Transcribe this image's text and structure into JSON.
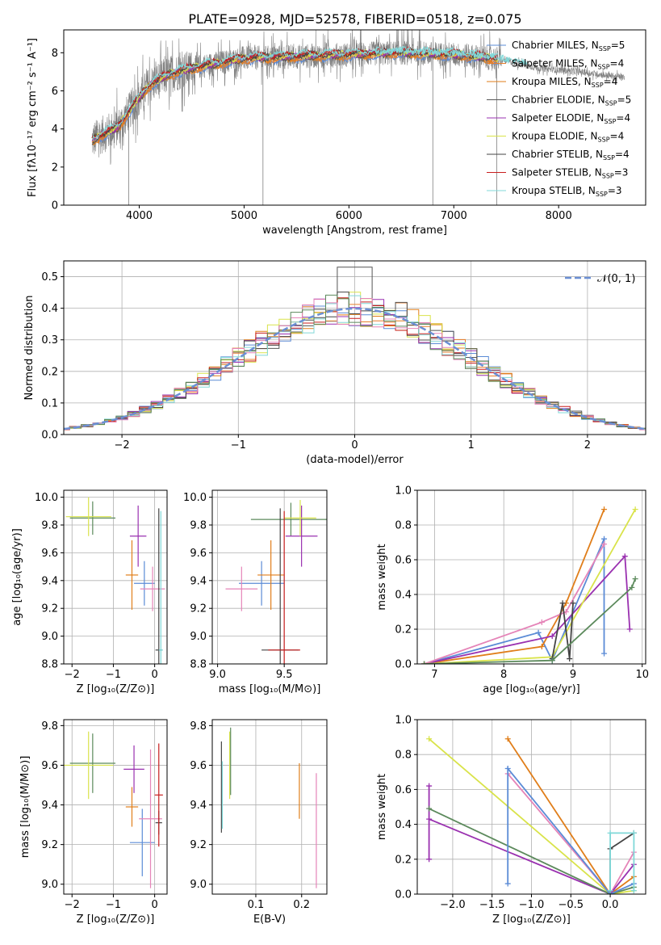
{
  "title": "PLATE=0928, MJD=52578, FIBERID=0518, z=0.075",
  "colors": {
    "chabrier_miles": "#5b8bd6",
    "salpeter_miles": "#e87f2c",
    "kroupa_miles": "#e07e1a",
    "chabrier_elodie": "#555555",
    "salpeter_elodie": "#9a31b0",
    "kroupa_elodie": "#d9e34a",
    "chabrier_stelib": "#444444",
    "salpeter_stelib": "#c81e1e",
    "kroupa_stelib": "#80d8d8",
    "spectrum_gray": "#808080",
    "pink": "#e584b8",
    "green": "#5c8a5c",
    "normal_curve": "#6b8fd4"
  },
  "chart_data": [
    {
      "id": "spectrum",
      "type": "line",
      "xlabel": "wavelength [Angstrom, rest frame]",
      "ylabel": "Flux [fλ10⁻¹⁷ erg cm⁻² s⁻¹ A⁻¹]",
      "xlim": [
        3280,
        8830
      ],
      "ylim": [
        0,
        9.2
      ],
      "xticks": [
        4000,
        5000,
        6000,
        7000,
        8000
      ],
      "yticks": [
        0,
        2,
        4,
        6,
        8
      ],
      "legend_position": "right",
      "legend": [
        {
          "label": "Chabrier MILES, N",
          "sub": "SSP",
          "suffix": "=5",
          "color": "#5b8bd6"
        },
        {
          "label": "Salpeter MILES, N",
          "sub": "SSP",
          "suffix": "=4",
          "color": "#e87f2c"
        },
        {
          "label": "Kroupa MILES, N",
          "sub": "SSP",
          "suffix": "=4",
          "color": "#e07e1a"
        },
        {
          "label": "Chabrier ELODIE, N",
          "sub": "SSP",
          "suffix": "=5",
          "color": "#555555"
        },
        {
          "label": "Salpeter ELODIE, N",
          "sub": "SSP",
          "suffix": "=4",
          "color": "#9a31b0"
        },
        {
          "label": "Kroupa ELODIE, N",
          "sub": "SSP",
          "suffix": "=4",
          "color": "#d9e34a"
        },
        {
          "label": "Chabrier STELIB, N",
          "sub": "SSP",
          "suffix": "=4",
          "color": "#444444"
        },
        {
          "label": "Salpeter STELIB, N",
          "sub": "SSP",
          "suffix": "=3",
          "color": "#c81e1e"
        },
        {
          "label": "Kroupa STELIB, N",
          "sub": "SSP",
          "suffix": "=3",
          "color": "#80d8d8"
        }
      ],
      "continuum": [
        [
          3550,
          3.4
        ],
        [
          3650,
          3.7
        ],
        [
          3800,
          4.1
        ],
        [
          3950,
          5.3
        ],
        [
          4100,
          6.3
        ],
        [
          4300,
          6.9
        ],
        [
          4600,
          7.3
        ],
        [
          5000,
          7.7
        ],
        [
          5500,
          7.8
        ],
        [
          6000,
          7.9
        ],
        [
          6500,
          8.0
        ],
        [
          7000,
          7.9
        ],
        [
          7400,
          7.7
        ],
        [
          7800,
          7.2
        ],
        [
          8200,
          7.0
        ],
        [
          8630,
          6.7
        ]
      ],
      "model_end": 7420,
      "noise_spikes": [
        [
          3900,
          0
        ],
        [
          5180,
          0
        ],
        [
          6800,
          0
        ],
        [
          7410,
          0
        ]
      ]
    },
    {
      "id": "residuals",
      "type": "histogram",
      "xlabel": "(data-model)/error",
      "ylabel": "Normed distribution",
      "xlim": [
        -2.5,
        2.5
      ],
      "ylim": [
        0,
        0.55
      ],
      "xticks": [
        -2,
        -1,
        0,
        1,
        2
      ],
      "yticks": [
        0.0,
        0.1,
        0.2,
        0.3,
        0.4,
        0.5
      ],
      "bin_width": 0.1,
      "legend": "𝒩(0, 1)",
      "normal_curve": {
        "mu": 0,
        "sigma": 1
      }
    },
    {
      "id": "age_vs_Z",
      "type": "scatter",
      "xlabel": "Z [log₁₀(Z/Z⊙)]",
      "ylabel": "age  [log₁₀(age/yr)]",
      "xlim": [
        -2.2,
        0.3
      ],
      "ylim": [
        8.8,
        10.05
      ],
      "xticks": [
        -2,
        -1,
        0
      ],
      "yticks": [
        8.8,
        9.0,
        9.2,
        9.4,
        9.6,
        9.8,
        10.0
      ],
      "points": [
        {
          "x": -0.25,
          "y": 9.38,
          "xerr": 0.25,
          "yerr": 0.16,
          "color": "#5b8bd6"
        },
        {
          "x": -0.55,
          "y": 9.44,
          "xerr": 0.15,
          "yerr": 0.25,
          "color": "#e07e1a"
        },
        {
          "x": -1.5,
          "y": 9.85,
          "xerr": 0.55,
          "yerr": 0.12,
          "color": "#5c8a5c"
        },
        {
          "x": -0.4,
          "y": 9.72,
          "xerr": 0.2,
          "yerr": 0.22,
          "color": "#9a31b0"
        },
        {
          "x": -1.6,
          "y": 9.86,
          "xerr": 0.55,
          "yerr": 0.14,
          "color": "#d9e34a"
        },
        {
          "x": -0.05,
          "y": 9.34,
          "xerr": 0.3,
          "yerr": 0.16,
          "color": "#e584b8"
        },
        {
          "x": 0.1,
          "y": 8.9,
          "xerr": 0.08,
          "yerr": 1.02,
          "color": "#444444"
        },
        {
          "x": 0.15,
          "y": 8.9,
          "xerr": 0.05,
          "yerr": 1.0,
          "color": "#80d8d8"
        }
      ]
    },
    {
      "id": "age_vs_mass",
      "type": "scatter",
      "xlabel": "mass [log₁₀(M/M⊙)]",
      "xlim": [
        8.96,
        9.82
      ],
      "ylim": [
        8.8,
        10.05
      ],
      "xticks": [
        9.0,
        9.5
      ],
      "yticks": [
        8.8,
        9.0,
        9.2,
        9.4,
        9.6,
        9.8,
        10.0
      ],
      "points": [
        {
          "x": 9.33,
          "y": 9.38,
          "xerr": 0.17,
          "yerr": 0.16,
          "color": "#5b8bd6"
        },
        {
          "x": 9.4,
          "y": 9.44,
          "xerr": 0.1,
          "yerr": 0.25,
          "color": "#e07e1a"
        },
        {
          "x": 9.55,
          "y": 9.84,
          "xerr": 0.3,
          "yerr": 0.12,
          "color": "#5c8a5c"
        },
        {
          "x": 9.63,
          "y": 9.72,
          "xerr": 0.12,
          "yerr": 0.22,
          "color": "#9a31b0"
        },
        {
          "x": 9.62,
          "y": 9.85,
          "xerr": 0.12,
          "yerr": 0.13,
          "color": "#d9e34a"
        },
        {
          "x": 9.18,
          "y": 9.34,
          "xerr": 0.12,
          "yerr": 0.16,
          "color": "#e584b8"
        },
        {
          "x": 9.47,
          "y": 8.9,
          "xerr": 0.14,
          "yerr": 1.02,
          "color": "#444444"
        },
        {
          "x": 9.5,
          "y": 8.9,
          "xerr": 0.12,
          "yerr": 1.0,
          "color": "#c81e1e"
        }
      ]
    },
    {
      "id": "weight_vs_age",
      "type": "line",
      "xlabel": "age  [log₁₀(age/yr)]",
      "ylabel": "mass weight",
      "xlim": [
        6.75,
        10.05
      ],
      "ylim": [
        0,
        1.0
      ],
      "xticks": [
        7,
        8,
        9,
        10
      ],
      "yticks": [
        0.0,
        0.2,
        0.4,
        0.6,
        0.8,
        1.0
      ],
      "series": [
        {
          "color": "#5b8bd6",
          "x": [
            6.85,
            8.5,
            8.7,
            9.45,
            9.45
          ],
          "y": [
            0.0,
            0.18,
            0.02,
            0.72,
            0.06
          ]
        },
        {
          "color": "#e07e1a",
          "x": [
            6.85,
            8.55,
            8.9,
            9.45
          ],
          "y": [
            0.0,
            0.1,
            0.35,
            0.89
          ]
        },
        {
          "color": "#9a31b0",
          "x": [
            6.85,
            8.7,
            9.75,
            9.82
          ],
          "y": [
            0.0,
            0.16,
            0.62,
            0.2
          ]
        },
        {
          "color": "#e584b8",
          "x": [
            6.85,
            8.55,
            8.9,
            9.45
          ],
          "y": [
            0.0,
            0.24,
            0.3,
            0.69
          ]
        },
        {
          "color": "#d9e34a",
          "x": [
            6.85,
            8.7,
            9.9
          ],
          "y": [
            0.0,
            0.04,
            0.89
          ]
        },
        {
          "color": "#444444",
          "x": [
            8.7,
            8.85,
            8.95,
            9.0
          ],
          "y": [
            0.03,
            0.35,
            0.03,
            0.35
          ]
        },
        {
          "color": "#5c8a5c",
          "x": [
            6.85,
            8.7,
            9.85,
            9.9
          ],
          "y": [
            0.0,
            0.02,
            0.44,
            0.49
          ]
        }
      ]
    },
    {
      "id": "mass_vs_Z",
      "type": "scatter",
      "xlabel": "Z [log₁₀(Z/Z⊙)]",
      "ylabel": "mass [log₁₀(M/M⊙)]",
      "xlim": [
        -2.2,
        0.3
      ],
      "ylim": [
        8.95,
        9.83
      ],
      "xticks": [
        -2,
        -1,
        0
      ],
      "yticks": [
        9.0,
        9.2,
        9.4,
        9.6,
        9.8
      ],
      "points": [
        {
          "x": -0.3,
          "y": 9.21,
          "xerr": 0.3,
          "yerr": 0.17,
          "color": "#5b8bd6"
        },
        {
          "x": -0.55,
          "y": 9.39,
          "xerr": 0.15,
          "yerr": 0.1,
          "color": "#e07e1a"
        },
        {
          "x": -1.5,
          "y": 9.61,
          "xerr": 0.55,
          "yerr": 0.15,
          "color": "#5c8a5c"
        },
        {
          "x": -0.5,
          "y": 9.58,
          "xerr": 0.25,
          "yerr": 0.12,
          "color": "#9a31b0"
        },
        {
          "x": -1.6,
          "y": 9.6,
          "xerr": 0.6,
          "yerr": 0.17,
          "color": "#d9e34a"
        },
        {
          "x": -0.1,
          "y": 9.33,
          "xerr": 0.28,
          "yerr": 0.35,
          "color": "#e584b8"
        },
        {
          "x": 0.1,
          "y": 9.31,
          "xerr": 0.08,
          "yerr": 0.06,
          "color": "#444444"
        },
        {
          "x": 0.1,
          "y": 9.45,
          "xerr": 0.1,
          "yerr": 0.26,
          "color": "#c81e1e"
        }
      ]
    },
    {
      "id": "mass_vs_ebv",
      "type": "scatter",
      "xlabel": "E(B-V)",
      "xlim": [
        0.005,
        0.255
      ],
      "ylim": [
        8.95,
        9.83
      ],
      "xticks": [
        0.1,
        0.2
      ],
      "yticks": [
        9.0,
        9.2,
        9.4,
        9.6,
        9.8
      ],
      "points": [
        {
          "x": 0.025,
          "y": 9.49,
          "xerr": 0,
          "yerr": 0.23,
          "color": "#444444"
        },
        {
          "x": 0.027,
          "y": 9.45,
          "xerr": 0,
          "yerr": 0.17,
          "color": "#80d8d8"
        },
        {
          "x": 0.043,
          "y": 9.6,
          "xerr": 0,
          "yerr": 0.17,
          "color": "#d9e34a"
        },
        {
          "x": 0.045,
          "y": 9.62,
          "xerr": 0,
          "yerr": 0.17,
          "color": "#5c8a5c"
        },
        {
          "x": 0.195,
          "y": 9.47,
          "xerr": 0,
          "yerr": 0.14,
          "color": "#e07e1a"
        },
        {
          "x": 0.232,
          "y": 9.27,
          "xerr": 0,
          "yerr": 0.29,
          "color": "#e584b8"
        }
      ]
    },
    {
      "id": "weight_vs_Z",
      "type": "line",
      "xlabel": "Z [log₁₀(Z/Z⊙)]",
      "ylabel": "mass weight",
      "xlim": [
        -2.45,
        0.45
      ],
      "ylim": [
        0,
        1.0
      ],
      "xticks": [
        -2.0,
        -1.5,
        -1.0,
        -0.5,
        0.0
      ],
      "yticks": [
        0.0,
        0.2,
        0.4,
        0.6,
        0.8,
        1.0
      ],
      "series": [
        {
          "color": "#d9e34a",
          "x": [
            -2.3,
            0.0,
            0.3
          ],
          "y": [
            0.89,
            0.0,
            0.02
          ]
        },
        {
          "color": "#e07e1a",
          "x": [
            -1.3,
            0.0,
            0.3
          ],
          "y": [
            0.89,
            0.0,
            0.1
          ]
        },
        {
          "color": "#e584b8",
          "x": [
            -1.3,
            0.0,
            0.3
          ],
          "y": [
            0.69,
            0.0,
            0.24
          ]
        },
        {
          "color": "#9a31b0",
          "x": [
            -2.3,
            -2.3,
            -2.3,
            0.0,
            0.3
          ],
          "y": [
            0.2,
            0.62,
            0.43,
            0.0,
            0.17
          ]
        },
        {
          "color": "#5c8a5c",
          "x": [
            -2.3,
            0.0,
            0.3
          ],
          "y": [
            0.49,
            0.0,
            0.04
          ]
        },
        {
          "color": "#5b8bd6",
          "x": [
            -1.3,
            -1.3,
            0.0,
            0.3
          ],
          "y": [
            0.06,
            0.72,
            0.0,
            0.06
          ]
        },
        {
          "color": "#444444",
          "x": [
            0.0,
            0.0,
            0.3
          ],
          "y": [
            0.0,
            0.26,
            0.35
          ]
        },
        {
          "color": "#80d8d8",
          "x": [
            0.0,
            0.0,
            0.3,
            0.3
          ],
          "y": [
            0.02,
            0.35,
            0.35,
            0.02
          ]
        }
      ]
    }
  ]
}
